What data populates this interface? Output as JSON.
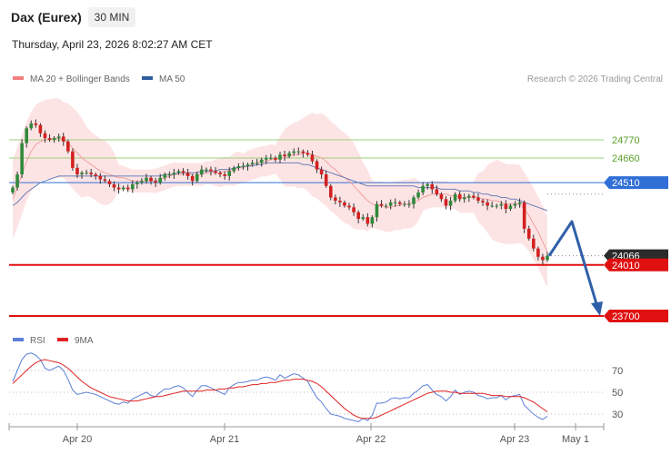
{
  "header": {
    "instrument": "Dax (Eurex)",
    "interval": "30 MIN",
    "datetime": "Thursday, April 23, 2026 8:02:27 AM CET",
    "copyright": "Research © 2026 Trading Central"
  },
  "legend": {
    "price_items": [
      {
        "label": "MA 20 + Bollinger Bands",
        "color": "#f08080"
      },
      {
        "label": "MA 50",
        "color": "#2e5d9e"
      }
    ],
    "rsi_items": [
      {
        "label": "RSI",
        "color": "#5b7fd6"
      },
      {
        "label": "9MA",
        "color": "#e02020"
      }
    ]
  },
  "colors": {
    "bullish": "#2f8a3a",
    "bearish": "#d32020",
    "band_fill": "#fde4e4",
    "ma20": "#f0a0a0",
    "ma50": "#6a7fb8",
    "resistance": "#9ecf7a",
    "pivot": "#2f6fd6",
    "support": "#e01010",
    "arrow": "#2f5fa8",
    "current_tag": "#2b2b2b"
  },
  "chart_data": [
    {
      "type": "candlestick",
      "title": "Dax (Eurex)",
      "x_ticks": [
        "Apr 20",
        "Apr 21",
        "Apr 22",
        "Apr 23",
        "May 1"
      ],
      "y_range": [
        23700,
        24770
      ],
      "levels": [
        {
          "value": 24770,
          "label": "24770",
          "role": "resistance"
        },
        {
          "value": 24660,
          "label": "24660",
          "role": "resistance"
        },
        {
          "value": 24510,
          "label": "24510",
          "role": "pivot"
        },
        {
          "value": 24066,
          "label": "24066",
          "role": "current"
        },
        {
          "value": 24010,
          "label": "24010",
          "role": "support"
        },
        {
          "value": 23700,
          "label": "23700",
          "role": "support"
        }
      ],
      "close_series": [
        24480,
        24560,
        24750,
        24840,
        24870,
        24860,
        24810,
        24780,
        24770,
        24780,
        24790,
        24760,
        24700,
        24600,
        24560,
        24570,
        24570,
        24560,
        24550,
        24530,
        24520,
        24500,
        24480,
        24470,
        24480,
        24470,
        24500,
        24510,
        24520,
        24540,
        24520,
        24510,
        24540,
        24560,
        24560,
        24570,
        24580,
        24570,
        24550,
        24520,
        24560,
        24590,
        24590,
        24580,
        24570,
        24560,
        24550,
        24580,
        24600,
        24610,
        24610,
        24620,
        24630,
        24630,
        24650,
        24660,
        24660,
        24650,
        24680,
        24670,
        24690,
        24700,
        24700,
        24690,
        24680,
        24640,
        24590,
        24560,
        24490,
        24420,
        24400,
        24390,
        24370,
        24360,
        24330,
        24290,
        24300,
        24260,
        24300,
        24380,
        24370,
        24370,
        24390,
        24390,
        24380,
        24380,
        24380,
        24420,
        24450,
        24490,
        24500,
        24470,
        24440,
        24410,
        24370,
        24400,
        24440,
        24410,
        24420,
        24430,
        24420,
        24400,
        24390,
        24370,
        24370,
        24370,
        24380,
        24350,
        24370,
        24380,
        24390,
        24230,
        24170,
        24110,
        24060,
        24040,
        24066
      ],
      "ma20_series": [
        24410,
        24480,
        24560,
        24640,
        24700,
        24740,
        24760,
        24770,
        24775,
        24780,
        24780,
        24770,
        24750,
        24720,
        24690,
        24660,
        24640,
        24620,
        24600,
        24580,
        24570,
        24560,
        24550,
        24540,
        24540,
        24530,
        24520,
        24520,
        24520,
        24520,
        24520,
        24520,
        24530,
        24540,
        24550,
        24560,
        24560,
        24560,
        24560,
        24560,
        24560,
        24560,
        24570,
        24570,
        24570,
        24570,
        24580,
        24580,
        24590,
        24600,
        24600,
        24610,
        24620,
        24630,
        24640,
        24640,
        24650,
        24650,
        24660,
        24660,
        24670,
        24680,
        24680,
        24690,
        24690,
        24680,
        24670,
        24660,
        24640,
        24610,
        24590,
        24560,
        24540,
        24520,
        24490,
        24460,
        24430,
        24400,
        24380,
        24370,
        24370,
        24360,
        24360,
        24370,
        24370,
        24380,
        24380,
        24390,
        24400,
        24420,
        24430,
        24440,
        24440,
        24440,
        24440,
        24430,
        24430,
        24420,
        24420,
        24420,
        24420,
        24420,
        24410,
        24410,
        24400,
        24400,
        24390,
        24380,
        24380,
        24380,
        24380,
        24350,
        24310,
        24260,
        24210,
        24150,
        24090
      ],
      "ma50_series": [
        24370,
        24390,
        24420,
        24450,
        24470,
        24490,
        24510,
        24520,
        24530,
        24540,
        24550,
        24550,
        24550,
        24550,
        24550,
        24550,
        24550,
        24550,
        24550,
        24550,
        24550,
        24550,
        24550,
        24550,
        24550,
        24550,
        24550,
        24550,
        24550,
        24550,
        24550,
        24550,
        24550,
        24560,
        24560,
        24560,
        24570,
        24570,
        24570,
        24570,
        24570,
        24580,
        24580,
        24580,
        24580,
        24590,
        24590,
        24590,
        24600,
        24600,
        24610,
        24610,
        24610,
        24620,
        24620,
        24630,
        24630,
        24630,
        24630,
        24630,
        24630,
        24630,
        24630,
        24620,
        24620,
        24610,
        24600,
        24590,
        24580,
        24570,
        24560,
        24550,
        24540,
        24530,
        24520,
        24510,
        24500,
        24490,
        24490,
        24490,
        24490,
        24490,
        24490,
        24490,
        24490,
        24490,
        24490,
        24490,
        24480,
        24480,
        24480,
        24480,
        24480,
        24470,
        24470,
        24470,
        24470,
        24460,
        24460,
        24460,
        24450,
        24450,
        24440,
        24440,
        24430,
        24430,
        24420,
        24420,
        24410,
        24410,
        24400,
        24390,
        24380,
        24370,
        24360,
        24350,
        24340
      ]
    },
    {
      "type": "line",
      "title": "RSI",
      "y_ticks": [
        70,
        50,
        30
      ],
      "y_range": [
        20,
        90
      ],
      "series": [
        {
          "name": "RSI",
          "values": [
            60,
            70,
            80,
            85,
            86,
            84,
            80,
            72,
            70,
            72,
            74,
            70,
            62,
            52,
            48,
            49,
            50,
            49,
            48,
            46,
            44,
            42,
            40,
            39,
            41,
            40,
            44,
            46,
            48,
            50,
            47,
            46,
            50,
            53,
            53,
            55,
            56,
            54,
            50,
            46,
            52,
            56,
            56,
            54,
            52,
            50,
            48,
            54,
            57,
            59,
            59,
            60,
            61,
            61,
            63,
            64,
            63,
            61,
            66,
            63,
            65,
            67,
            66,
            63,
            60,
            52,
            45,
            41,
            35,
            30,
            29,
            28,
            26,
            25,
            24,
            23,
            26,
            24,
            29,
            40,
            40,
            41,
            44,
            45,
            44,
            45,
            45,
            49,
            52,
            56,
            57,
            52,
            48,
            46,
            42,
            46,
            52,
            48,
            50,
            51,
            50,
            47,
            46,
            44,
            45,
            45,
            47,
            43,
            46,
            47,
            48,
            38,
            34,
            30,
            27,
            25,
            28
          ]
        },
        {
          "name": "9MA",
          "values": [
            58,
            62,
            66,
            70,
            74,
            77,
            79,
            80,
            79,
            78,
            77,
            75,
            72,
            68,
            64,
            60,
            57,
            54,
            52,
            50,
            48,
            46,
            45,
            44,
            43,
            42,
            42,
            42,
            43,
            44,
            45,
            46,
            46,
            47,
            48,
            49,
            50,
            51,
            51,
            51,
            51,
            51,
            52,
            52,
            52,
            53,
            53,
            54,
            54,
            55,
            55,
            56,
            57,
            57,
            58,
            58,
            59,
            59,
            60,
            61,
            61,
            62,
            62,
            62,
            61,
            60,
            58,
            55,
            51,
            47,
            43,
            39,
            35,
            32,
            29,
            27,
            26,
            26,
            26,
            27,
            29,
            31,
            33,
            35,
            37,
            39,
            41,
            43,
            45,
            47,
            49,
            50,
            51,
            51,
            51,
            50,
            50,
            49,
            49,
            49,
            49,
            49,
            49,
            48,
            47,
            47,
            47,
            46,
            46,
            46,
            46,
            45,
            43,
            41,
            38,
            35,
            32
          ]
        }
      ]
    }
  ]
}
